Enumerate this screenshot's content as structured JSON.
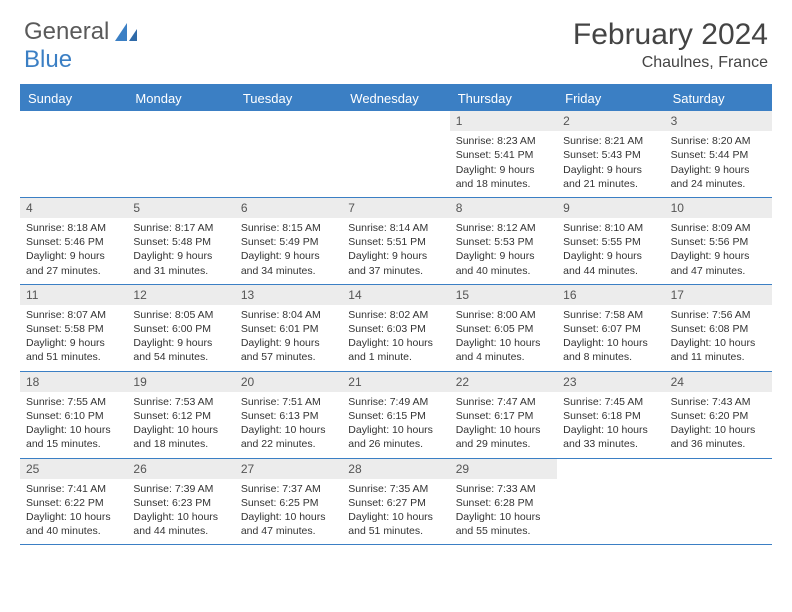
{
  "brand": {
    "name1": "General",
    "name2": "Blue"
  },
  "title": {
    "month": "February 2024",
    "location": "Chaulnes, France"
  },
  "colors": {
    "brand_blue": "#3b7fc4",
    "header_row_bg": "#ececec",
    "text": "#333333",
    "divider": "#3b7fc4"
  },
  "day_headers": [
    "Sunday",
    "Monday",
    "Tuesday",
    "Wednesday",
    "Thursday",
    "Friday",
    "Saturday"
  ],
  "weeks": [
    [
      {
        "n": "",
        "empty": true
      },
      {
        "n": "",
        "empty": true
      },
      {
        "n": "",
        "empty": true
      },
      {
        "n": "",
        "empty": true
      },
      {
        "n": "1",
        "sunrise": "8:23 AM",
        "sunset": "5:41 PM",
        "daylight": "9 hours and 18 minutes."
      },
      {
        "n": "2",
        "sunrise": "8:21 AM",
        "sunset": "5:43 PM",
        "daylight": "9 hours and 21 minutes."
      },
      {
        "n": "3",
        "sunrise": "8:20 AM",
        "sunset": "5:44 PM",
        "daylight": "9 hours and 24 minutes."
      }
    ],
    [
      {
        "n": "4",
        "sunrise": "8:18 AM",
        "sunset": "5:46 PM",
        "daylight": "9 hours and 27 minutes."
      },
      {
        "n": "5",
        "sunrise": "8:17 AM",
        "sunset": "5:48 PM",
        "daylight": "9 hours and 31 minutes."
      },
      {
        "n": "6",
        "sunrise": "8:15 AM",
        "sunset": "5:49 PM",
        "daylight": "9 hours and 34 minutes."
      },
      {
        "n": "7",
        "sunrise": "8:14 AM",
        "sunset": "5:51 PM",
        "daylight": "9 hours and 37 minutes."
      },
      {
        "n": "8",
        "sunrise": "8:12 AM",
        "sunset": "5:53 PM",
        "daylight": "9 hours and 40 minutes."
      },
      {
        "n": "9",
        "sunrise": "8:10 AM",
        "sunset": "5:55 PM",
        "daylight": "9 hours and 44 minutes."
      },
      {
        "n": "10",
        "sunrise": "8:09 AM",
        "sunset": "5:56 PM",
        "daylight": "9 hours and 47 minutes."
      }
    ],
    [
      {
        "n": "11",
        "sunrise": "8:07 AM",
        "sunset": "5:58 PM",
        "daylight": "9 hours and 51 minutes."
      },
      {
        "n": "12",
        "sunrise": "8:05 AM",
        "sunset": "6:00 PM",
        "daylight": "9 hours and 54 minutes."
      },
      {
        "n": "13",
        "sunrise": "8:04 AM",
        "sunset": "6:01 PM",
        "daylight": "9 hours and 57 minutes."
      },
      {
        "n": "14",
        "sunrise": "8:02 AM",
        "sunset": "6:03 PM",
        "daylight": "10 hours and 1 minute."
      },
      {
        "n": "15",
        "sunrise": "8:00 AM",
        "sunset": "6:05 PM",
        "daylight": "10 hours and 4 minutes."
      },
      {
        "n": "16",
        "sunrise": "7:58 AM",
        "sunset": "6:07 PM",
        "daylight": "10 hours and 8 minutes."
      },
      {
        "n": "17",
        "sunrise": "7:56 AM",
        "sunset": "6:08 PM",
        "daylight": "10 hours and 11 minutes."
      }
    ],
    [
      {
        "n": "18",
        "sunrise": "7:55 AM",
        "sunset": "6:10 PM",
        "daylight": "10 hours and 15 minutes."
      },
      {
        "n": "19",
        "sunrise": "7:53 AM",
        "sunset": "6:12 PM",
        "daylight": "10 hours and 18 minutes."
      },
      {
        "n": "20",
        "sunrise": "7:51 AM",
        "sunset": "6:13 PM",
        "daylight": "10 hours and 22 minutes."
      },
      {
        "n": "21",
        "sunrise": "7:49 AM",
        "sunset": "6:15 PM",
        "daylight": "10 hours and 26 minutes."
      },
      {
        "n": "22",
        "sunrise": "7:47 AM",
        "sunset": "6:17 PM",
        "daylight": "10 hours and 29 minutes."
      },
      {
        "n": "23",
        "sunrise": "7:45 AM",
        "sunset": "6:18 PM",
        "daylight": "10 hours and 33 minutes."
      },
      {
        "n": "24",
        "sunrise": "7:43 AM",
        "sunset": "6:20 PM",
        "daylight": "10 hours and 36 minutes."
      }
    ],
    [
      {
        "n": "25",
        "sunrise": "7:41 AM",
        "sunset": "6:22 PM",
        "daylight": "10 hours and 40 minutes."
      },
      {
        "n": "26",
        "sunrise": "7:39 AM",
        "sunset": "6:23 PM",
        "daylight": "10 hours and 44 minutes."
      },
      {
        "n": "27",
        "sunrise": "7:37 AM",
        "sunset": "6:25 PM",
        "daylight": "10 hours and 47 minutes."
      },
      {
        "n": "28",
        "sunrise": "7:35 AM",
        "sunset": "6:27 PM",
        "daylight": "10 hours and 51 minutes."
      },
      {
        "n": "29",
        "sunrise": "7:33 AM",
        "sunset": "6:28 PM",
        "daylight": "10 hours and 55 minutes."
      },
      {
        "n": "",
        "empty": true
      },
      {
        "n": "",
        "empty": true
      }
    ]
  ],
  "labels": {
    "sunrise": "Sunrise:",
    "sunset": "Sunset:",
    "daylight": "Daylight:"
  }
}
